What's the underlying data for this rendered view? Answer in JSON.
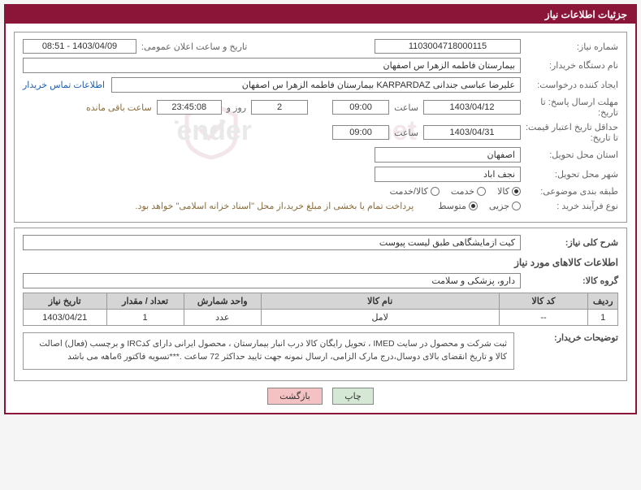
{
  "panel": {
    "title": "جزئیات اطلاعات نیاز"
  },
  "fields": {
    "need_number_label": "شماره نیاز:",
    "need_number": "1103004718000115",
    "announce_label": "تاریخ و ساعت اعلان عمومی:",
    "announce_value": "1403/04/09 - 08:51",
    "buyer_label": "نام دستگاه خریدار:",
    "buyer_value": "بیمارستان فاطمه الزهرا س اصفهان",
    "creator_label": "ایجاد کننده درخواست:",
    "creator_value": "علیرضا عباسی جندانی KARPARDAZ بیمارستان فاطمه الزهرا س اصفهان",
    "contact_link": "اطلاعات تماس خریدار",
    "deadline_label": "مهلت ارسال پاسخ: تا تاریخ:",
    "deadline_date": "1403/04/12",
    "time_label": "ساعت",
    "deadline_time": "09:00",
    "days_remaining": "2",
    "days_word": "روز و",
    "time_remaining": "23:45:08",
    "remaining_hint": "ساعت باقی مانده",
    "validity_label": "حداقل تاریخ اعتبار قیمت: تا تاریخ:",
    "validity_date": "1403/04/31",
    "validity_time": "09:00",
    "province_label": "استان محل تحویل:",
    "province_value": "اصفهان",
    "city_label": "شهر محل تحویل:",
    "city_value": "نجف اباد",
    "class_label": "طبقه بندی موضوعی:",
    "process_label": "نوع فرآیند خرید :",
    "payment_note": "پرداخت تمام یا بخشی از مبلغ خرید،از محل \"اسناد خزانه اسلامی\" خواهد بود."
  },
  "radios": {
    "class": [
      {
        "label": "کالا",
        "checked": true
      },
      {
        "label": "خدمت",
        "checked": false
      },
      {
        "label": "کالا/خدمت",
        "checked": false
      }
    ],
    "process": [
      {
        "label": "جزیی",
        "checked": false
      },
      {
        "label": "متوسط",
        "checked": true
      }
    ]
  },
  "sections": {
    "desc_label": "شرح کلی نیاز:",
    "desc_value": "کیت ازمایشگاهی طبق لیست پیوست",
    "goods_info": "اطلاعات کالاهای مورد نیاز",
    "group_label": "گروه کالا:",
    "group_value": "دارو، پزشکی و سلامت"
  },
  "table": {
    "headers": [
      "ردیف",
      "کد کالا",
      "نام کالا",
      "واحد شمارش",
      "تعداد / مقدار",
      "تاریخ نیاز"
    ],
    "rows": [
      [
        "1",
        "--",
        "لامل",
        "عدد",
        "1",
        "1403/04/21"
      ]
    ]
  },
  "note": {
    "label": "توضیحات خریدار:",
    "text": "ثبت شرکت و محصول در سایت IMED ، تحویل رایگان کالا درب انبار بیمارستان ، محصول ایرانی دارای کدIRC و برچسب (فعال) اصالت کالا و تاریخ انقضای بالای دوسال،درج مارک الزامی،  ارسال نمونه جهت تایید حداکثر 72 ساعت .***تسویه فاکتور 6ماهه می باشد"
  },
  "buttons": {
    "print": "چاپ",
    "back": "بازگشت"
  },
  "colors": {
    "brand": "#8a1538",
    "border": "#999",
    "header_bg": "#d5d5d5",
    "link": "#1a5fb4",
    "hint": "#8a6d3b"
  }
}
